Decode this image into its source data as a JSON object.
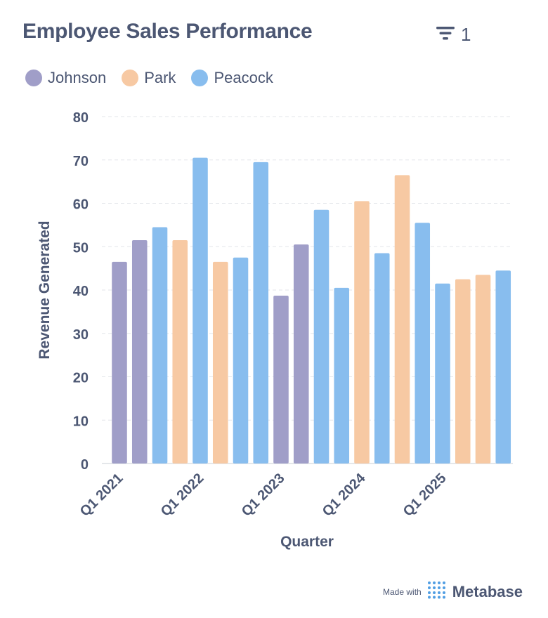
{
  "header": {
    "title": "Employee Sales Performance",
    "filter_count": "1"
  },
  "legend": [
    {
      "label": "Johnson",
      "color": "#a09ec8"
    },
    {
      "label": "Park",
      "color": "#f7c9a3"
    },
    {
      "label": "Peacock",
      "color": "#88bdee"
    }
  ],
  "footer": {
    "made_with": "Made with",
    "brand": "Metabase"
  },
  "icons": {
    "filter": "filter-icon",
    "logo": "metabase-logo-icon"
  },
  "chart_data": {
    "type": "bar",
    "title": "Employee Sales Performance",
    "xlabel": "Quarter",
    "ylabel": "Revenue Generated",
    "ylim": [
      0,
      80
    ],
    "yticks": [
      0,
      10,
      20,
      30,
      40,
      50,
      60,
      70,
      80
    ],
    "xticks": [
      "Q1 2021",
      "Q1 2022",
      "Q1 2023",
      "Q1 2024",
      "Q1 2025"
    ],
    "grid": true,
    "legend_position": "top-left",
    "bars": [
      {
        "series": "Johnson",
        "value": 46.5
      },
      {
        "series": "Johnson",
        "value": 51.5
      },
      {
        "series": "Peacock",
        "value": 54.5
      },
      {
        "series": "Park",
        "value": 51.5
      },
      {
        "series": "Peacock",
        "value": 70.5
      },
      {
        "series": "Park",
        "value": 46.5
      },
      {
        "series": "Peacock",
        "value": 47.5
      },
      {
        "series": "Peacock",
        "value": 69.5
      },
      {
        "series": "Johnson",
        "value": 38.7
      },
      {
        "series": "Johnson",
        "value": 50.5
      },
      {
        "series": "Peacock",
        "value": 58.5
      },
      {
        "series": "Peacock",
        "value": 40.5
      },
      {
        "series": "Park",
        "value": 60.5
      },
      {
        "series": "Peacock",
        "value": 48.5
      },
      {
        "series": "Park",
        "value": 66.5
      },
      {
        "series": "Peacock",
        "value": 55.5
      },
      {
        "series": "Peacock",
        "value": 41.5
      },
      {
        "series": "Park",
        "value": 42.5
      },
      {
        "series": "Park",
        "value": 43.5
      },
      {
        "series": "Peacock",
        "value": 44.5
      }
    ]
  }
}
